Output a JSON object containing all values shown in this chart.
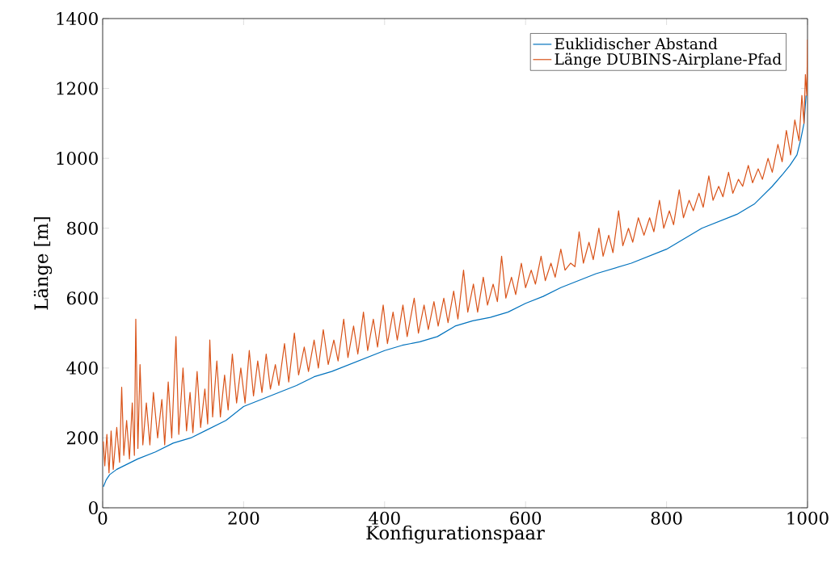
{
  "chart_data": {
    "type": "line",
    "xlabel": "Konfigurationspaar",
    "ylabel": "Länge [m]",
    "xlim": [
      0,
      1000
    ],
    "ylim": [
      0,
      1400
    ],
    "xticks": [
      0,
      200,
      400,
      600,
      800,
      1000
    ],
    "yticks": [
      0,
      200,
      400,
      600,
      800,
      1000,
      1200,
      1400
    ],
    "legend": "top right",
    "grid": false,
    "series": [
      {
        "name": "Euklidischer Abstand",
        "color": "#0072bd",
        "x": [
          1,
          5,
          10,
          20,
          30,
          50,
          75,
          100,
          125,
          150,
          175,
          200,
          225,
          250,
          275,
          300,
          325,
          350,
          375,
          400,
          425,
          450,
          475,
          500,
          525,
          550,
          575,
          600,
          625,
          650,
          675,
          700,
          725,
          750,
          775,
          800,
          825,
          850,
          875,
          900,
          925,
          950,
          965,
          975,
          985,
          990,
          995,
          998
        ],
        "values": [
          60,
          80,
          95,
          110,
          120,
          140,
          160,
          185,
          200,
          225,
          250,
          290,
          310,
          330,
          350,
          375,
          390,
          410,
          430,
          450,
          465,
          475,
          490,
          520,
          535,
          545,
          560,
          585,
          605,
          630,
          650,
          670,
          685,
          700,
          720,
          740,
          770,
          800,
          820,
          840,
          870,
          920,
          955,
          980,
          1010,
          1050,
          1100,
          1180
        ]
      },
      {
        "name": "Länge DUBINS-Airplane-Pfad",
        "color": "#d95319",
        "x": [
          1,
          3,
          6,
          9,
          12,
          15,
          20,
          24,
          27,
          30,
          34,
          38,
          42,
          45,
          47,
          50,
          53,
          57,
          62,
          67,
          72,
          78,
          84,
          88,
          93,
          98,
          104,
          108,
          114,
          119,
          124,
          128,
          134,
          139,
          145,
          149,
          152,
          156,
          162,
          167,
          173,
          178,
          184,
          190,
          196,
          202,
          208,
          214,
          220,
          226,
          232,
          238,
          245,
          250,
          258,
          264,
          272,
          278,
          286,
          292,
          300,
          306,
          313,
          320,
          328,
          334,
          342,
          348,
          356,
          362,
          370,
          376,
          384,
          390,
          398,
          404,
          412,
          418,
          426,
          432,
          442,
          448,
          456,
          462,
          470,
          476,
          484,
          490,
          498,
          504,
          512,
          518,
          526,
          532,
          540,
          546,
          554,
          560,
          566,
          572,
          580,
          586,
          594,
          600,
          608,
          614,
          622,
          628,
          636,
          642,
          650,
          656,
          664,
          670,
          676,
          682,
          690,
          696,
          704,
          710,
          718,
          724,
          732,
          738,
          746,
          752,
          760,
          768,
          776,
          782,
          790,
          796,
          804,
          810,
          818,
          824,
          832,
          838,
          846,
          852,
          860,
          866,
          874,
          880,
          888,
          894,
          902,
          908,
          916,
          922,
          930,
          936,
          944,
          950,
          958,
          964,
          970,
          976,
          982,
          988,
          992,
          995,
          997,
          999,
          1000
        ],
        "values": [
          190,
          120,
          210,
          100,
          220,
          110,
          230,
          130,
          345,
          150,
          250,
          140,
          300,
          150,
          540,
          170,
          410,
          180,
          300,
          180,
          330,
          200,
          310,
          180,
          360,
          200,
          490,
          210,
          400,
          220,
          330,
          215,
          390,
          230,
          340,
          240,
          480,
          260,
          420,
          260,
          380,
          280,
          440,
          300,
          400,
          300,
          450,
          320,
          420,
          330,
          440,
          340,
          410,
          350,
          470,
          360,
          500,
          380,
          460,
          390,
          480,
          400,
          510,
          410,
          480,
          420,
          540,
          430,
          520,
          440,
          560,
          450,
          540,
          460,
          580,
          470,
          560,
          480,
          580,
          490,
          600,
          500,
          580,
          510,
          590,
          520,
          600,
          530,
          620,
          540,
          680,
          560,
          640,
          560,
          660,
          580,
          640,
          590,
          720,
          600,
          660,
          610,
          700,
          630,
          680,
          640,
          720,
          650,
          700,
          660,
          740,
          680,
          700,
          690,
          790,
          700,
          760,
          710,
          800,
          720,
          780,
          730,
          850,
          750,
          800,
          760,
          830,
          780,
          830,
          790,
          880,
          800,
          850,
          810,
          910,
          830,
          880,
          850,
          900,
          860,
          950,
          880,
          920,
          890,
          960,
          900,
          940,
          920,
          980,
          930,
          970,
          940,
          1000,
          960,
          1040,
          990,
          1080,
          1010,
          1110,
          1050,
          1180,
          1100,
          1240,
          1180,
          1340
        ]
      }
    ]
  }
}
